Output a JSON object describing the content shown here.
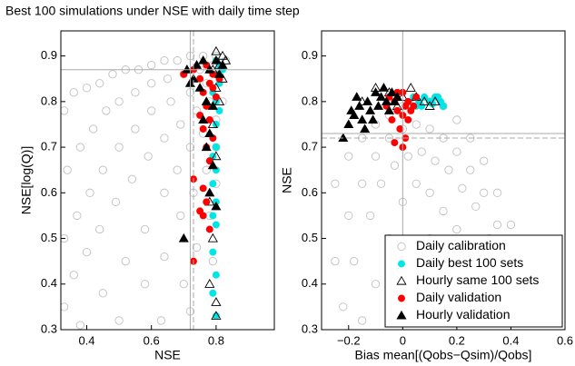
{
  "chart_data": [
    {
      "type": "scatter",
      "title": "Best 100 simulations under NSE with daily time step",
      "xlabel": "NSE",
      "ylabel": "NSE[log(Q)]",
      "xlim": [
        0.32,
        0.98
      ],
      "ylim": [
        0.3,
        0.955
      ],
      "xticks": [
        0.4,
        0.6,
        0.8
      ],
      "yticks": [
        0.3,
        0.4,
        0.5,
        0.6,
        0.7,
        0.8,
        0.9
      ],
      "hlines": [
        {
          "value": 0.87,
          "style": "solid"
        }
      ],
      "vlines": [
        {
          "value": 0.72,
          "style": "solid"
        },
        {
          "value": 0.73,
          "style": "dashed"
        }
      ],
      "series": [
        {
          "color": "#c0c0c0",
          "marker": "circle",
          "filled": false,
          "x": [
            0.33,
            0.36,
            0.4,
            0.44,
            0.48,
            0.52,
            0.56,
            0.6,
            0.64,
            0.68,
            0.72,
            0.76,
            0.8,
            0.83,
            0.34,
            0.38,
            0.42,
            0.46,
            0.5,
            0.55,
            0.6,
            0.65,
            0.7,
            0.75,
            0.79,
            0.33,
            0.37,
            0.41,
            0.45,
            0.5,
            0.55,
            0.6,
            0.66,
            0.72,
            0.77,
            0.33,
            0.36,
            0.4,
            0.44,
            0.49,
            0.54,
            0.59,
            0.64,
            0.69,
            0.74,
            0.78,
            0.38,
            0.45,
            0.52,
            0.58,
            0.64,
            0.68,
            0.72,
            0.76,
            0.8,
            0.5,
            0.58,
            0.64,
            0.69,
            0.73,
            0.77,
            0.8,
            0.82,
            0.63,
            0.7,
            0.74,
            0.78,
            0.8,
            0.72,
            0.79
          ],
          "y": [
            0.78,
            0.82,
            0.83,
            0.84,
            0.86,
            0.87,
            0.87,
            0.88,
            0.89,
            0.89,
            0.9,
            0.9,
            0.9,
            0.89,
            0.65,
            0.7,
            0.74,
            0.78,
            0.8,
            0.82,
            0.84,
            0.85,
            0.86,
            0.87,
            0.88,
            0.5,
            0.55,
            0.6,
            0.65,
            0.7,
            0.74,
            0.78,
            0.8,
            0.82,
            0.84,
            0.35,
            0.42,
            0.47,
            0.52,
            0.58,
            0.63,
            0.68,
            0.72,
            0.75,
            0.78,
            0.8,
            0.31,
            0.38,
            0.45,
            0.52,
            0.6,
            0.65,
            0.7,
            0.73,
            0.76,
            0.32,
            0.4,
            0.46,
            0.55,
            0.6,
            0.65,
            0.7,
            0.8,
            0.32,
            0.4,
            0.48,
            0.55,
            0.62,
            0.34,
            0.45
          ]
        },
        {
          "color": "#00e5e5",
          "marker": "circle",
          "filled": true,
          "x": [
            0.8,
            0.81,
            0.82,
            0.8,
            0.81,
            0.79,
            0.8,
            0.81,
            0.8,
            0.79,
            0.8,
            0.79,
            0.8,
            0.79,
            0.8,
            0.79,
            0.8,
            0.79,
            0.8,
            0.79,
            0.8
          ],
          "y": [
            0.89,
            0.88,
            0.87,
            0.86,
            0.84,
            0.82,
            0.8,
            0.78,
            0.75,
            0.72,
            0.7,
            0.68,
            0.65,
            0.62,
            0.58,
            0.55,
            0.53,
            0.47,
            0.42,
            0.38,
            0.33
          ]
        },
        {
          "color": "#000000",
          "marker": "triangle",
          "filled": false,
          "x": [
            0.8,
            0.82,
            0.83,
            0.81,
            0.79,
            0.82,
            0.8,
            0.81,
            0.79,
            0.8,
            0.78,
            0.79,
            0.78,
            0.8,
            0.8
          ],
          "y": [
            0.91,
            0.9,
            0.89,
            0.88,
            0.87,
            0.85,
            0.83,
            0.8,
            0.75,
            0.68,
            0.58,
            0.5,
            0.4,
            0.36,
            0.33
          ]
        },
        {
          "color": "#ff0000",
          "marker": "circle",
          "filled": true,
          "x": [
            0.7,
            0.73,
            0.75,
            0.77,
            0.78,
            0.76,
            0.79,
            0.8,
            0.77,
            0.75,
            0.78,
            0.76,
            0.79,
            0.77,
            0.78,
            0.73,
            0.76,
            0.77,
            0.75,
            0.76,
            0.78,
            0.73,
            0.79,
            0.81
          ],
          "y": [
            0.86,
            0.87,
            0.85,
            0.88,
            0.84,
            0.82,
            0.86,
            0.81,
            0.79,
            0.77,
            0.76,
            0.74,
            0.72,
            0.7,
            0.67,
            0.63,
            0.61,
            0.58,
            0.56,
            0.55,
            0.52,
            0.45,
            0.83,
            0.85
          ]
        },
        {
          "color": "#000000",
          "marker": "triangle",
          "filled": true,
          "x": [
            0.71,
            0.73,
            0.74,
            0.76,
            0.78,
            0.8,
            0.82,
            0.75,
            0.77,
            0.79,
            0.76,
            0.78,
            0.77,
            0.79,
            0.78,
            0.8,
            0.7,
            0.72,
            0.81
          ],
          "y": [
            0.87,
            0.85,
            0.88,
            0.89,
            0.87,
            0.89,
            0.88,
            0.83,
            0.8,
            0.79,
            0.76,
            0.73,
            0.7,
            0.66,
            0.6,
            0.57,
            0.5,
            0.84,
            0.86
          ]
        }
      ]
    },
    {
      "type": "scatter",
      "xlabel": "Bias mean[(Qobs−Qsim)/Qobs]",
      "ylabel": "NSE",
      "xlim": [
        -0.3,
        0.6
      ],
      "ylim": [
        0.3,
        0.955
      ],
      "xticks": [
        {
          "value": -0.2,
          "label": "−0.2"
        },
        0,
        0.2,
        0.4,
        0.6
      ],
      "yticks": [
        0.3,
        0.4,
        0.5,
        0.6,
        0.7,
        0.8,
        0.9
      ],
      "hlines": [
        {
          "value": 0.73,
          "style": "solid"
        },
        {
          "value": 0.72,
          "style": "dashed"
        }
      ],
      "vlines": [
        {
          "value": 0,
          "style": "solid"
        }
      ],
      "legend": "lower right",
      "series": [
        {
          "name": "Daily calibration",
          "color": "#c0c0c0",
          "marker": "circle",
          "filled": false,
          "x": [
            -0.25,
            -0.2,
            -0.15,
            -0.1,
            -0.05,
            0,
            0.05,
            0.1,
            0.15,
            0.2,
            0.25,
            0.3,
            0.35,
            0.4,
            0.45,
            0.5,
            0.55,
            -0.25,
            -0.2,
            -0.15,
            -0.1,
            -0.05,
            0,
            0.05,
            0.1,
            0.15,
            0.2,
            0.25,
            0.3,
            0.35,
            0.4,
            0.45,
            0.5,
            -0.22,
            -0.18,
            -0.12,
            -0.08,
            -0.03,
            0.02,
            0.07,
            0.12,
            0.17,
            0.22,
            0.27,
            0.32,
            0.37,
            0.42,
            -0.15,
            -0.1,
            -0.05,
            0,
            0.05,
            0.1,
            0.15,
            0.2,
            0.25,
            0.3,
            0.35,
            -0.02,
            0.05,
            0.1,
            0.15,
            0.2,
            0.25
          ],
          "y": [
            0.62,
            0.68,
            0.72,
            0.75,
            0.77,
            0.79,
            0.8,
            0.8,
            0.79,
            0.76,
            0.72,
            0.67,
            0.6,
            0.53,
            0.45,
            0.38,
            0.32,
            0.45,
            0.55,
            0.62,
            0.68,
            0.72,
            0.74,
            0.75,
            0.74,
            0.72,
            0.69,
            0.65,
            0.6,
            0.53,
            0.45,
            0.38,
            0.32,
            0.35,
            0.45,
            0.55,
            0.62,
            0.66,
            0.68,
            0.69,
            0.67,
            0.65,
            0.61,
            0.57,
            0.5,
            0.43,
            0.36,
            0.32,
            0.4,
            0.5,
            0.58,
            0.62,
            0.6,
            0.56,
            0.52,
            0.47,
            0.4,
            0.33,
            0.35,
            0.45,
            0.5,
            0.45,
            0.38,
            0.33
          ]
        },
        {
          "name": "Daily best 100 sets",
          "color": "#00e5e5",
          "marker": "circle",
          "filled": true,
          "x": [
            0.02,
            0.04,
            0.06,
            0.08,
            0.1,
            0.12,
            0.14,
            0.15,
            0.07,
            0.11,
            0.05,
            0.13
          ],
          "y": [
            0.8,
            0.81,
            0.8,
            0.81,
            0.8,
            0.81,
            0.8,
            0.79,
            0.79,
            0.795,
            0.79,
            0.81
          ]
        },
        {
          "name": "Hourly same 100 sets",
          "color": "#000000",
          "marker": "triangle",
          "filled": false,
          "x": [
            -0.1,
            -0.05,
            0,
            0.03,
            0.05,
            0.08,
            0.1,
            0.12,
            -0.15,
            -0.02
          ],
          "y": [
            0.83,
            0.82,
            0.81,
            0.83,
            0.81,
            0.8,
            0.79,
            0.8,
            0.8,
            0.79
          ]
        },
        {
          "name": "Daily validation",
          "color": "#ff0000",
          "marker": "circle",
          "filled": true,
          "x": [
            -0.05,
            -0.03,
            0,
            0.02,
            0.04,
            -0.02,
            0,
            0.02,
            -0.04,
            -0.01,
            0.01,
            -0.03,
            0,
            0.03,
            -0.06,
            0.05,
            0.01,
            -0.02
          ],
          "y": [
            0.81,
            0.8,
            0.82,
            0.8,
            0.79,
            0.78,
            0.77,
            0.76,
            0.76,
            0.74,
            0.72,
            0.71,
            0.7,
            0.78,
            0.79,
            0.81,
            0.79,
            0.82
          ]
        },
        {
          "name": "Hourly validation",
          "color": "#000000",
          "marker": "triangle",
          "filled": true,
          "x": [
            -0.22,
            -0.2,
            -0.18,
            -0.16,
            -0.15,
            -0.13,
            -0.12,
            -0.1,
            -0.09,
            -0.08,
            -0.07,
            -0.06,
            -0.05,
            -0.04,
            -0.03,
            -0.14,
            -0.11,
            -0.17,
            -0.19,
            -0.02
          ],
          "y": [
            0.72,
            0.75,
            0.77,
            0.79,
            0.76,
            0.8,
            0.78,
            0.82,
            0.79,
            0.81,
            0.83,
            0.8,
            0.78,
            0.82,
            0.8,
            0.74,
            0.76,
            0.81,
            0.78,
            0.81
          ]
        }
      ]
    }
  ]
}
